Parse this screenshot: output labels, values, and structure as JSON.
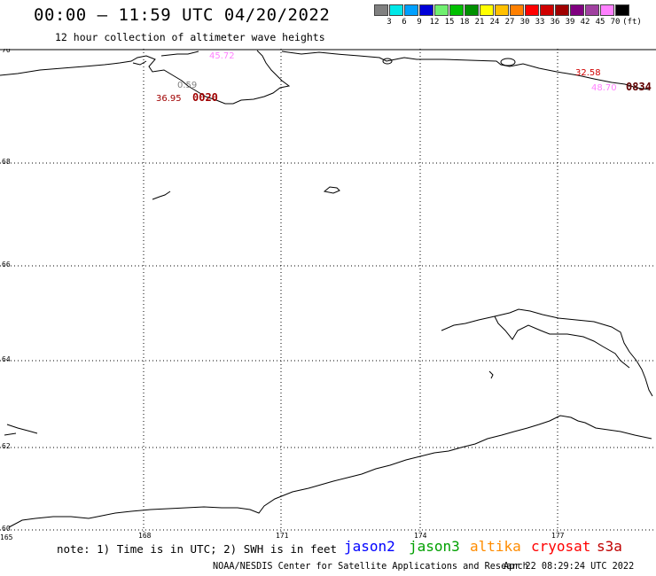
{
  "header": {
    "title": "00:00 – 11:59 UTC 04/20/2022",
    "subtitle": "12 hour collection of altimeter wave heights"
  },
  "legend": {
    "unit": "(ft)",
    "colors": [
      "#808080",
      "#00e8e8",
      "#00a0ff",
      "#0000d8",
      "#70f070",
      "#00c000",
      "#009000",
      "#ffff00",
      "#ffc000",
      "#ff8000",
      "#ff0000",
      "#d00000",
      "#a00000",
      "#800080",
      "#a040a0",
      "#ff80ff",
      "#000000"
    ],
    "labels": [
      "3",
      "6",
      "9",
      "12",
      "15",
      "18",
      "21",
      "24",
      "27",
      "30",
      "33",
      "36",
      "39",
      "42",
      "45",
      "70"
    ]
  },
  "map": {
    "lat_labels": [
      "70",
      "68",
      "66",
      "64",
      "62",
      "60"
    ],
    "lon_labels": [
      "165",
      "168",
      "171",
      "174",
      "177"
    ],
    "annotations": [
      {
        "text": "45.72",
        "color": "#ff80ff"
      },
      {
        "text": "0.59",
        "color": "#808080"
      },
      {
        "text": "36.95",
        "color": "#a00000"
      },
      {
        "text": "0020",
        "color": "#a00000"
      },
      {
        "text": "32.58",
        "color": "#d00000"
      },
      {
        "text": "48.70",
        "color": "#ff80ff"
      },
      {
        "text": "0834",
        "color": "#600000"
      }
    ]
  },
  "footer": {
    "note": "note: 1) Time is in UTC; 2) SWH is in feet",
    "satellites": [
      {
        "name": "jason2",
        "color": "#0000ff"
      },
      {
        "name": "jason3",
        "color": "#00a000"
      },
      {
        "name": "altika",
        "color": "#ff8c00"
      },
      {
        "name": "cryosat",
        "color": "#ff0000"
      },
      {
        "name": "s3a",
        "color": "#c00000"
      }
    ],
    "credit": "NOAA/NESDIS Center for Satellite Applications and Research",
    "timestamp": "Apr 22 08:29:24 UTC 2022"
  }
}
